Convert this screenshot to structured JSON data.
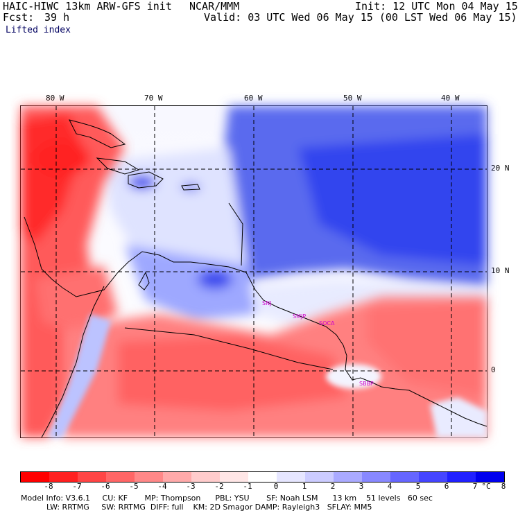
{
  "header": {
    "model": "HAIC-HIWC 13km ARW-GFS init",
    "org": "NCAR/MMM",
    "init": "Init: 12 UTC Mon 04 May 15",
    "fcst_label": "Fcst:",
    "fcst_value": "39 h",
    "valid": "Valid: 03 UTC Wed 06 May 15 (00 LST Wed 06 May 15)",
    "field": "Lifted index"
  },
  "map": {
    "lon_labels": [
      "80 W",
      "70 W",
      "60 W",
      "50 W",
      "40 W"
    ],
    "lat_labels": [
      "20 N",
      "10 N",
      "0"
    ],
    "stations": [
      "SNJ",
      "SMJP",
      "SOCA",
      "SBBP"
    ]
  },
  "colorbar": {
    "labels": [
      "-8",
      "-7",
      "-6",
      "-5",
      "-4",
      "-3",
      "-2",
      "-1",
      "0",
      "1",
      "2",
      "3",
      "4",
      "5",
      "6",
      "7",
      "8"
    ],
    "unit": "°C",
    "colors": [
      "#ff0000",
      "#ff2020",
      "#ff4545",
      "#ff6666",
      "#ff8888",
      "#ffaaaa",
      "#ffcccc",
      "#ffe6e6",
      "#ffffff",
      "#e6e6ff",
      "#ccccff",
      "#aaaaff",
      "#8888ff",
      "#6666ff",
      "#4545ff",
      "#2020ff",
      "#0000ee"
    ]
  },
  "model_info": {
    "line1": "Model Info: V3.6.1     CU: KF       MP: Thompson      PBL: YSU       SF: Noah LSM      13 km    51 levels   60 sec",
    "line2": "LW: RRTMG     SW: RRTMG  DIFF: full    KM: 2D Smagor DAMP: Rayleigh3   SFLAY: MM5"
  }
}
